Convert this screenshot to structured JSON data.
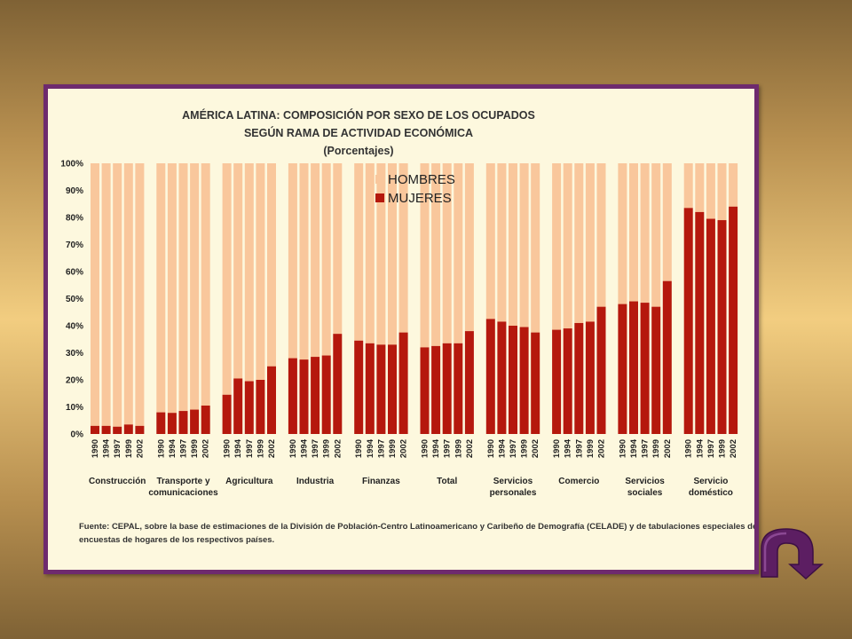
{
  "slide": {
    "background_color": "#f2cd80",
    "frame_color": "#6e2a6e",
    "nav_icon": "curved-arrow-down-icon"
  },
  "chart_data": {
    "type": "bar",
    "stacked": true,
    "title_lines": [
      "AMÉRICA LATINA: COMPOSICIÓN POR SEXO DE LOS OCUPADOS",
      "SEGÚN  RAMA DE ACTIVIDAD ECONÓMICA",
      "(Porcentajes)"
    ],
    "ylim": [
      0,
      100
    ],
    "yticks": [
      "0%",
      "10%",
      "20%",
      "30%",
      "40%",
      "50%",
      "60%",
      "70%",
      "80%",
      "90%",
      "100%"
    ],
    "years": [
      "1990",
      "1994",
      "1997",
      "1999",
      "2002"
    ],
    "legend": {
      "position": "top-center",
      "hombres": "HOMBRES",
      "mujeres": "MUJERES"
    },
    "colors": {
      "hombres": "#f9c79c",
      "mujeres": "#b5180d"
    },
    "groups": [
      {
        "label": [
          "Construcción"
        ],
        "mujeres": [
          3,
          3,
          2.7,
          3.5,
          3
        ]
      },
      {
        "label": [
          "Transporte y",
          "comunicaciones"
        ],
        "mujeres": [
          8,
          7.8,
          8.5,
          9,
          10.5
        ]
      },
      {
        "label": [
          "Agricultura"
        ],
        "mujeres": [
          14.5,
          20.5,
          19.5,
          20,
          25
        ]
      },
      {
        "label": [
          "Industria"
        ],
        "mujeres": [
          28,
          27.5,
          28.5,
          29,
          37
        ]
      },
      {
        "label": [
          "Finanzas"
        ],
        "mujeres": [
          34.5,
          33.5,
          33,
          33,
          37.5
        ]
      },
      {
        "label": [
          "Total"
        ],
        "mujeres": [
          32,
          32.5,
          33.5,
          33.5,
          38
        ]
      },
      {
        "label": [
          "Servicios",
          "personales"
        ],
        "mujeres": [
          42.5,
          41.5,
          40,
          39.5,
          37.5
        ]
      },
      {
        "label": [
          "Comercio"
        ],
        "mujeres": [
          38.5,
          39,
          41,
          41.5,
          47
        ]
      },
      {
        "label": [
          "Servicios",
          "sociales"
        ],
        "mujeres": [
          48,
          49,
          48.5,
          47,
          56.5
        ]
      },
      {
        "label": [
          "Servicio",
          "doméstico"
        ],
        "mujeres": [
          83.5,
          82,
          79.5,
          79,
          84
        ]
      }
    ],
    "source_lines": [
      "Fuente: CEPAL, sobre la base de estimaciones de la División de Población-Centro Latinoamericano y Caribeño de Demografía (CELADE) y de tabulaciones especiales de las",
      "encuestas de hogares de los respectivos países."
    ]
  }
}
